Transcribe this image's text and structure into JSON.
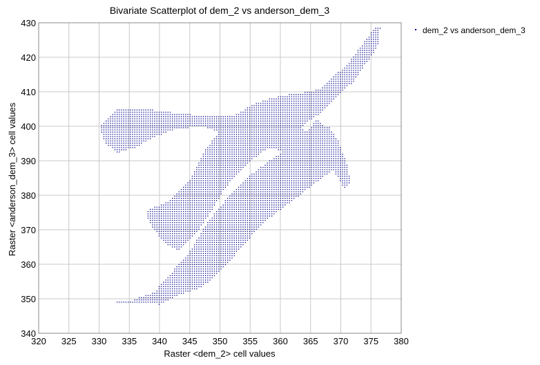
{
  "chart_data": {
    "type": "scatter",
    "title": "Bivariate Scatterplot of dem_2 vs anderson_dem_3",
    "xlabel": "Raster <dem_2> cell values",
    "ylabel": "Raster <anderson_dem_3> cell values",
    "xlim": [
      320,
      380
    ],
    "ylim": [
      340,
      430
    ],
    "xticks": [
      "320",
      "325",
      "330",
      "335",
      "340",
      "345",
      "350",
      "355",
      "360",
      "365",
      "370",
      "375",
      "380"
    ],
    "yticks": [
      "340",
      "350",
      "360",
      "370",
      "380",
      "390",
      "400",
      "410",
      "420",
      "430"
    ],
    "grid": true,
    "legend_position": "top-right",
    "series": [
      {
        "name": "dem_2 vs anderson_dem_3",
        "color": "#00008b",
        "marker": "dot",
        "regions": [
          [
            [
              329,
              350.5
            ],
            [
              333,
              349
            ],
            [
              340,
              348.5
            ],
            [
              343,
              351
            ],
            [
              347,
              353.5
            ],
            [
              350,
              358
            ],
            [
              354,
              366
            ],
            [
              357,
              372
            ],
            [
              360,
              376
            ],
            [
              363,
              380
            ],
            [
              366,
              384
            ],
            [
              369,
              388
            ],
            [
              370,
              392
            ],
            [
              369,
              396
            ],
            [
              368,
              399
            ],
            [
              366,
              402
            ],
            [
              365,
              408
            ],
            [
              367,
              412
            ],
            [
              371,
              418
            ],
            [
              374,
              425
            ],
            [
              375.5,
              428.8
            ],
            [
              376.5,
              428.8
            ],
            [
              376,
              423
            ],
            [
              374,
              418
            ],
            [
              372,
              413
            ],
            [
              370,
              410
            ],
            [
              367,
              405
            ],
            [
              365,
              400
            ],
            [
              362,
              395
            ],
            [
              358,
              390
            ],
            [
              355,
              386
            ],
            [
              352,
              381
            ],
            [
              349,
              375
            ],
            [
              347,
              370
            ],
            [
              345,
              364
            ],
            [
              342,
              358
            ],
            [
              339,
              352
            ],
            [
              335,
              349.5
            ],
            [
              331,
              349.8
            ]
          ],
          [
            [
              333,
              405.5
            ],
            [
              338,
              405
            ],
            [
              343,
              404
            ],
            [
              348,
              403
            ],
            [
              353,
              403
            ],
            [
              357,
              402
            ],
            [
              361,
              401
            ],
            [
              364,
              399
            ],
            [
              366,
              396
            ],
            [
              365,
              393
            ],
            [
              362,
              392
            ],
            [
              356,
              395
            ],
            [
              351,
              398
            ],
            [
              347,
              400
            ],
            [
              343,
              399.5
            ],
            [
              339,
              397
            ],
            [
              336,
              394
            ],
            [
              333,
              392.5
            ],
            [
              331,
              395
            ],
            [
              330,
              400
            ]
          ],
          [
            [
              366,
              401
            ],
            [
              368,
              400
            ],
            [
              369.5,
              396
            ],
            [
              371,
              389
            ],
            [
              371.5,
              384
            ],
            [
              370.5,
              382
            ],
            [
              369.5,
              385
            ],
            [
              367.5,
              391
            ],
            [
              365.5,
              395
            ],
            [
              364.5,
              399
            ]
          ],
          [
            [
              338,
              376
            ],
            [
              341,
              378
            ],
            [
              343,
              381
            ],
            [
              345,
              385
            ],
            [
              347,
              392
            ],
            [
              349,
              397
            ],
            [
              352,
              403
            ],
            [
              356,
              407
            ],
            [
              360,
              409
            ],
            [
              364,
              410
            ],
            [
              367,
              411
            ],
            [
              368,
              406
            ],
            [
              365,
              402
            ],
            [
              362,
              398
            ],
            [
              358,
              394
            ],
            [
              355,
              390
            ],
            [
              352,
              385
            ],
            [
              350,
              380
            ],
            [
              348,
              374
            ],
            [
              346,
              369
            ],
            [
              343,
              364
            ],
            [
              341,
              366
            ],
            [
              339,
              370
            ],
            [
              338,
              373
            ]
          ]
        ]
      }
    ]
  }
}
